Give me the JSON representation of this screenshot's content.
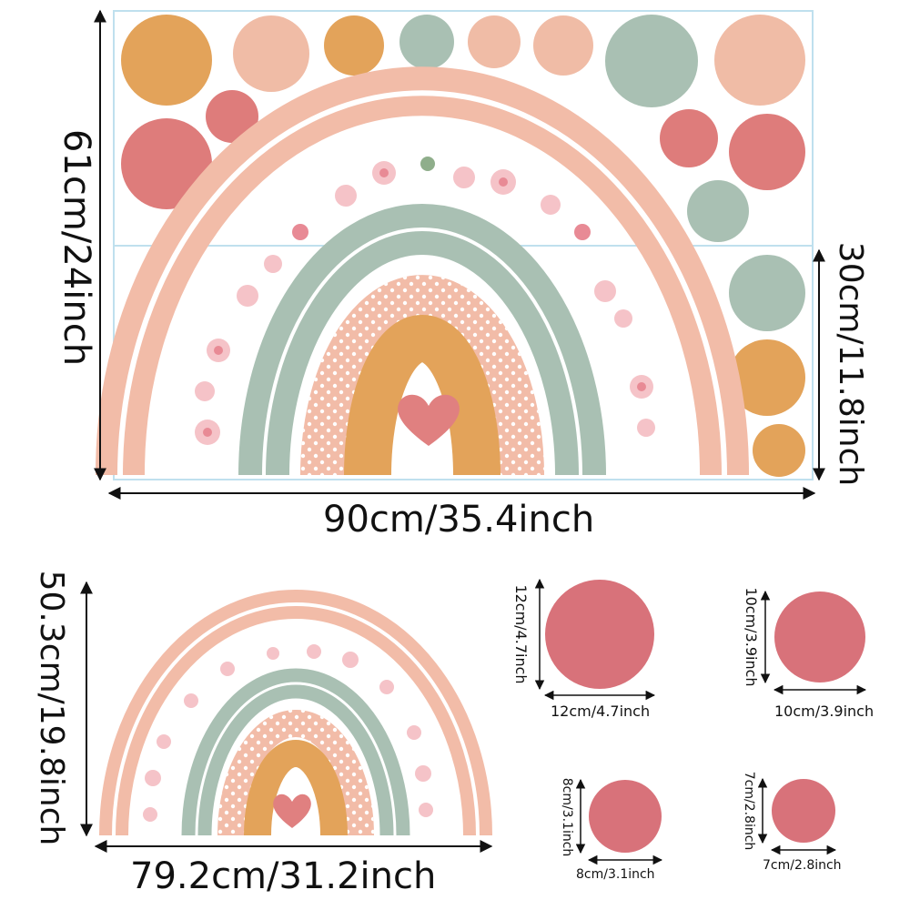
{
  "colors": {
    "mustard": "#E3A35A",
    "peach": "#F0BCA6",
    "sage": "#A9C0B3",
    "coral": "#DE7C7B",
    "pinkBand": "#F2BCA8",
    "rose": "#D8727A",
    "heart": "#E08080"
  },
  "top_sheet": {
    "width_label": "90cm/35.4inch",
    "height_label": "61cm/24inch",
    "half_height_label": "30cm/11.8inch"
  },
  "bottom_rainbow": {
    "width_label": "79.2cm/31.2inch",
    "height_label": "50.3cm/19.8inch"
  },
  "dots": [
    {
      "w": "12cm/4.7inch",
      "h": "12cm/4.7inch"
    },
    {
      "w": "10cm/3.9inch",
      "h": "10cm/3.9inch"
    },
    {
      "w": "8cm/3.1inch",
      "h": "8cm/3.1inch"
    },
    {
      "w": "7cm/2.8inch",
      "h": "7cm/2.8inch"
    }
  ]
}
